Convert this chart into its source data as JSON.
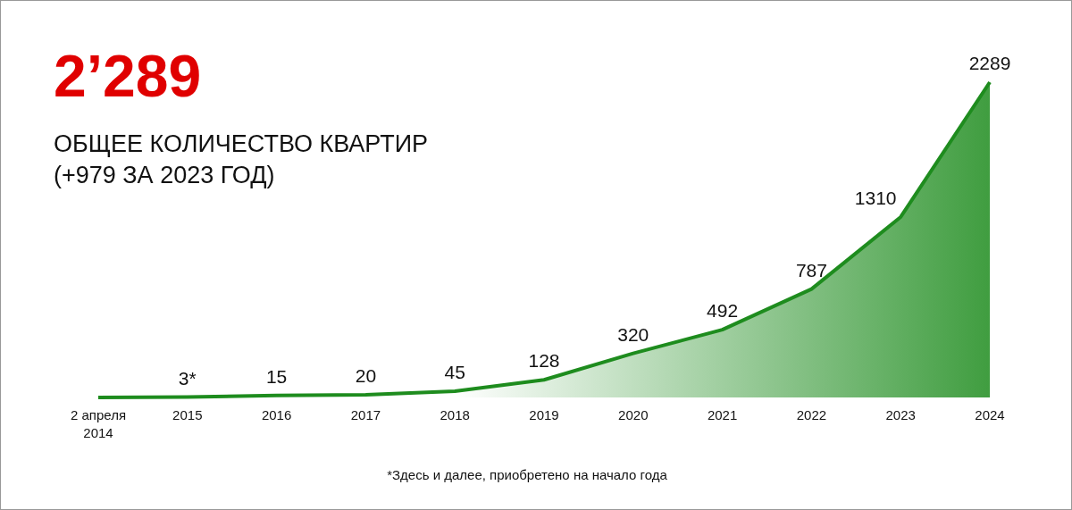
{
  "chart_data": {
    "type": "area",
    "title": "2’289",
    "subtitle": "ОБЩЕЕ КОЛИЧЕСТВО КВАРТИР\n(+979 ЗА 2023 ГОД)",
    "categories": [
      "2 апреля\n2014",
      "2015",
      "2016",
      "2017",
      "2018",
      "2019",
      "2020",
      "2021",
      "2022",
      "2023",
      "2024"
    ],
    "series": [
      {
        "color": "#1e8c1e",
        "values": [
          0,
          3,
          15,
          20,
          45,
          128,
          320,
          492,
          787,
          1310,
          2289
        ],
        "value_labels": [
          null,
          "3*",
          "15",
          "20",
          "45",
          "128",
          "320",
          "492",
          "787",
          "1310",
          "2289"
        ]
      }
    ],
    "annotations": [
      "*Здесь и далее, приобретено на начало года"
    ]
  }
}
